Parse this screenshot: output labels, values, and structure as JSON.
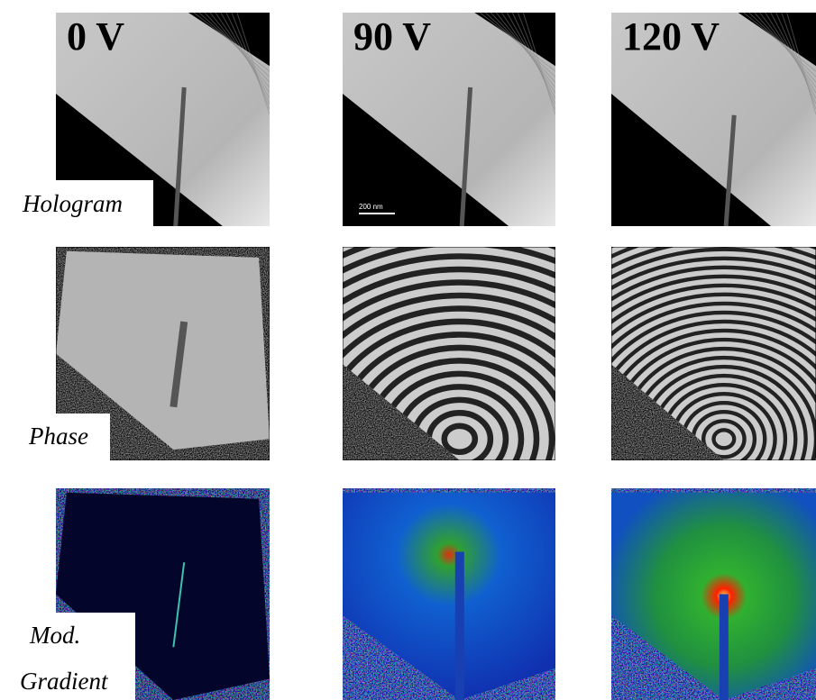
{
  "columns": [
    {
      "label": "0 V"
    },
    {
      "label": "90 V"
    },
    {
      "label": "120 V"
    }
  ],
  "rows": [
    {
      "label": "Hologram"
    },
    {
      "label": "Phase"
    },
    {
      "label": [
        "Mod.",
        "Gradient"
      ]
    }
  ],
  "scale_bar": "200 nm"
}
